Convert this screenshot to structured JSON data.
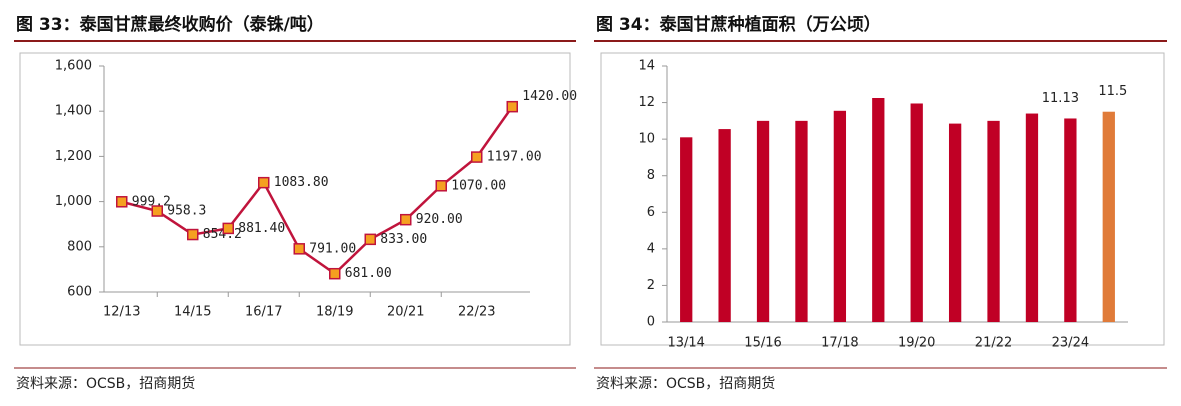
{
  "chart_data": [
    {
      "type": "line",
      "title": "图 33：泰国甘蔗最终收购价（泰铢/吨）",
      "source": "资料来源：OCSB，招商期货",
      "categories": [
        "12/13",
        null,
        "14/15",
        null,
        "16/17",
        null,
        "18/19",
        null,
        "20/21",
        null,
        "22/23",
        null
      ],
      "series": [
        {
          "name": null,
          "color": "#c0143c",
          "marker_color": "#f5a020",
          "values": [
            999.2,
            958.3,
            854.2,
            881.4,
            1083.8,
            791,
            681,
            833,
            920,
            1070,
            1197,
            1420
          ],
          "value_labels": [
            "999.2",
            "958.3",
            "854.2",
            "881.40",
            "1083.80",
            "791.00",
            "681.00",
            "833.00",
            "920.00",
            "1070.00",
            "1197.00",
            "1420.00"
          ]
        }
      ],
      "ylim": [
        600,
        1600
      ],
      "yticks": [
        {
          "value": 600,
          "label": "600"
        },
        {
          "value": 800,
          "label": "800"
        },
        {
          "value": 1000,
          "label": "1,000"
        },
        {
          "value": 1200,
          "label": "1,200"
        },
        {
          "value": 1400,
          "label": "1,400"
        },
        {
          "value": 1600,
          "label": "1,600"
        }
      ]
    },
    {
      "type": "bar",
      "title": "图 34：泰国甘蔗种植面积（万公顷）",
      "source": "资料来源：OCSB，招商期货",
      "categories": [
        "13/14",
        null,
        "15/16",
        null,
        "17/18",
        null,
        "19/20",
        null,
        "21/22",
        null,
        "23/24",
        null
      ],
      "series": [
        {
          "name": null,
          "colors": [
            "#c00025",
            "#c00025",
            "#c00025",
            "#c00025",
            "#c00025",
            "#c00025",
            "#c00025",
            "#c00025",
            "#c00025",
            "#c00025",
            "#c00025",
            "#e07b39"
          ],
          "values": [
            10.1,
            10.55,
            11.0,
            11.0,
            11.55,
            12.25,
            11.95,
            10.85,
            11.0,
            11.4,
            11.13,
            11.5
          ],
          "value_labels": [
            null,
            null,
            null,
            null,
            null,
            null,
            null,
            null,
            null,
            null,
            "11.13",
            "11.5"
          ]
        }
      ],
      "ylim": [
        0,
        14
      ],
      "yticks": [
        0,
        2,
        4,
        6,
        8,
        10,
        12,
        14
      ]
    }
  ]
}
